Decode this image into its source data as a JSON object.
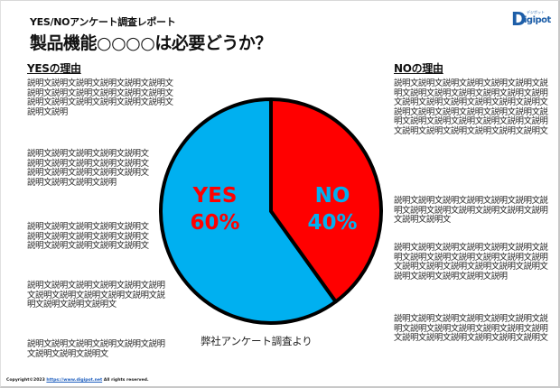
{
  "header": {
    "subtitle": "YES/NOアンケート調査レポート",
    "title": "製品機能○○○○は必要どうか？"
  },
  "logo": {
    "brand_initial": "D",
    "brand_rest": "igipot",
    "kana": "デジポット",
    "color": "#1d5ea8"
  },
  "left_column": {
    "heading": "YESの理由",
    "paragraphs": [
      "説明文説明文説明文説明文説明文説明文説明文説明文説明文説明文説明文説明文説明文説明文説明文説明文説明文説明文説明文説明",
      "説明文説明文説明文説明文説明文説明文説明文説明文説明文説明文説明文説明文説明文説明文説明文説明文説明文説明文説明",
      "説明文説明文説明文説明文説明文説明文説明文説明文説明文説明文説明文説明文説明文説明文説明文",
      "説明文説明文説明文説明文説明文説明文説明文説明文説明文説明文説明文説明文説明文説明文説明文",
      "説明文説明文説明文説明文説明文説明文説明文説明文説明文"
    ]
  },
  "right_column": {
    "heading": "NOの理由",
    "paragraphs": [
      "説明文説明文説明文説明文説明文説明文説明文説明文説明文説明文説明文説明文説明文説明文説明文説明文説明文説明文説明文説明文説明文説明文説明文説明文説明文説明文説明文説明文説明文説明文説明文説明文説明文説明文説明文説明文説明文説明文",
      "説明文説明文説明文説明文説明文説明文説明文説明文説明文説明文説明文説明文説明文説明文説明文",
      "説明文説明文説明文説明文説明文説明文説明文説明文説明文説明文説明文説明文説明文説明文説明文説明文説明文説明文説明文説明文説明文説明文説明文説明",
      "説明文説明文説明文説明文説明文説明文説明文説明文説明文説明文説明文説明文説明文説明文説明文説明文説明文説明文説明文"
    ]
  },
  "chart_data": {
    "type": "pie",
    "title": "製品機能○○○○は必要どうか？",
    "categories": [
      "NO",
      "YES"
    ],
    "values": [
      40,
      60
    ],
    "labels": [
      "NO 40%",
      "YES 60%"
    ],
    "colors": [
      "#ff0000",
      "#00b0f0"
    ],
    "label_colors": [
      "#00b0f0",
      "#ff0000"
    ],
    "start_angle": "12 o'clock, clockwise",
    "outline_color": "#000000",
    "legend": "none (labels inside slices)",
    "source": "弊社アンケート調査より"
  },
  "pie": {
    "yes_label": "YES",
    "yes_pct": "60%",
    "no_label": "NO",
    "no_pct": "40%"
  },
  "source_note": "弊社アンケート調査より",
  "footer": {
    "copyright": "Copyright©2023",
    "link": "https://www.digipot.net",
    "rights": "All rights reserved."
  }
}
